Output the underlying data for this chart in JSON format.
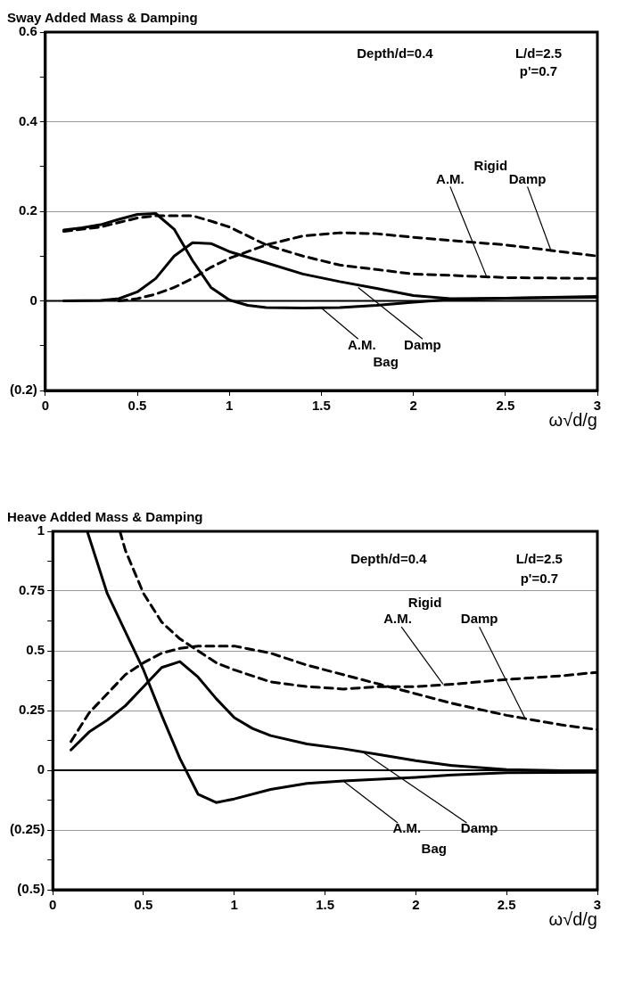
{
  "chart_data": [
    {
      "type": "line",
      "title": "Sway Added Mass & Damping",
      "xlabel": "ω√d/g",
      "xlim": [
        0,
        3
      ],
      "xticks": [
        0,
        0.5,
        1,
        1.5,
        2,
        2.5,
        3
      ],
      "ylim": [
        -0.2,
        0.6
      ],
      "yticks": [
        {
          "value": -0.2,
          "label": "(0.2)"
        },
        {
          "value": -0.1,
          "label": null
        },
        0,
        {
          "value": 0.1,
          "label": null
        },
        0.2,
        {
          "value": 0.3,
          "label": null
        },
        0.4,
        {
          "value": 0.5,
          "label": null
        },
        0.6
      ],
      "grid": "y",
      "legend": false,
      "marker": "none",
      "tick_labels": "xy",
      "ref_lines": [
        {
          "axis": "y",
          "value": 0,
          "color": "#000000"
        }
      ],
      "series": [
        {
          "color": "#000000",
          "line_style": "solid",
          "x": [
            0.1,
            0.2,
            0.3,
            0.4,
            0.5,
            0.6,
            0.7,
            0.8,
            0.9,
            1.0,
            1.1,
            1.2,
            1.4,
            1.6,
            1.8,
            2.0,
            2.2,
            2.5,
            3.0
          ],
          "values": [
            0.158,
            0.163,
            0.17,
            0.182,
            0.193,
            0.195,
            0.16,
            0.09,
            0.03,
            0.002,
            -0.01,
            -0.015,
            -0.016,
            -0.015,
            -0.01,
            -0.003,
            0.003,
            0.006,
            0.008
          ]
        },
        {
          "color": "#000000",
          "line_style": "solid",
          "x": [
            0.1,
            0.3,
            0.4,
            0.5,
            0.6,
            0.7,
            0.8,
            0.9,
            1.0,
            1.2,
            1.4,
            1.6,
            1.8,
            2.0,
            2.2,
            2.5,
            3.0
          ],
          "values": [
            0,
            0.001,
            0.005,
            0.02,
            0.05,
            0.1,
            0.13,
            0.128,
            0.11,
            0.085,
            0.06,
            0.043,
            0.028,
            0.012,
            0.005,
            0.006,
            0.01
          ]
        },
        {
          "color": "#000000",
          "line_style": "dashed",
          "x": [
            0.1,
            0.2,
            0.3,
            0.4,
            0.5,
            0.6,
            0.7,
            0.8,
            0.9,
            1.0,
            1.1,
            1.2,
            1.4,
            1.6,
            1.8,
            2.0,
            2.2,
            2.5,
            3.0
          ],
          "values": [
            0.155,
            0.16,
            0.165,
            0.175,
            0.185,
            0.19,
            0.19,
            0.19,
            0.178,
            0.165,
            0.145,
            0.125,
            0.1,
            0.08,
            0.07,
            0.06,
            0.057,
            0.052,
            0.05
          ]
        },
        {
          "color": "#000000",
          "line_style": "dashed",
          "x": [
            0.4,
            0.5,
            0.6,
            0.7,
            0.8,
            0.9,
            1.0,
            1.2,
            1.4,
            1.6,
            1.8,
            2.0,
            2.2,
            2.5,
            2.8,
            3.0
          ],
          "values": [
            0,
            0.005,
            0.015,
            0.03,
            0.05,
            0.075,
            0.095,
            0.125,
            0.145,
            0.152,
            0.15,
            0.142,
            0.135,
            0.125,
            0.11,
            0.1
          ]
        }
      ],
      "annotations": [
        "Depth/d=0.4",
        "L/d=2.5",
        "p'=0.7",
        "Rigid",
        {
          "text": "A.M.",
          "x": 2.4,
          "y": 0.052
        },
        {
          "text": "Damp",
          "x": 2.75,
          "y": 0.11
        },
        {
          "text": "A.M.",
          "x": 1.5,
          "y": -0.016
        },
        {
          "text": "Damp",
          "x": 1.7,
          "y": 0.03
        },
        "Bag"
      ]
    },
    {
      "type": "line",
      "title": "Heave Added Mass & Damping",
      "xlabel": "ω√d/g",
      "xlim": [
        0,
        3
      ],
      "xticks": [
        0,
        0.5,
        1,
        1.5,
        2,
        2.5,
        3
      ],
      "ylim": [
        -0.5,
        1
      ],
      "yticks": [
        {
          "value": -0.5,
          "label": "(0.5)"
        },
        {
          "value": -0.375,
          "label": null
        },
        {
          "value": -0.25,
          "label": "(0.25)"
        },
        {
          "value": -0.125,
          "label": null
        },
        0,
        {
          "value": 0.125,
          "label": null
        },
        0.25,
        {
          "value": 0.375,
          "label": null
        },
        0.5,
        {
          "value": 0.625,
          "label": null
        },
        0.75,
        {
          "value": 0.875,
          "label": null
        },
        1
      ],
      "grid": "y",
      "legend": false,
      "marker": "none",
      "tick_labels": "xy",
      "ref_lines": [
        {
          "axis": "y",
          "value": 0,
          "color": "#000000"
        }
      ],
      "series": [
        {
          "color": "#000000",
          "line_style": "solid",
          "x": [
            0.19,
            0.3,
            0.4,
            0.5,
            0.6,
            0.7,
            0.8,
            0.9,
            1.0,
            1.2,
            1.4,
            1.6,
            1.8,
            2.0,
            2.2,
            2.5,
            3.0
          ],
          "values": [
            1,
            0.74,
            0.58,
            0.42,
            0.23,
            0.05,
            -0.1,
            -0.135,
            -0.12,
            -0.08,
            -0.055,
            -0.045,
            -0.037,
            -0.03,
            -0.02,
            -0.01,
            -0.008
          ]
        },
        {
          "color": "#000000",
          "line_style": "solid",
          "x": [
            0.1,
            0.2,
            0.3,
            0.4,
            0.5,
            0.6,
            0.7,
            0.8,
            0.9,
            1.0,
            1.1,
            1.2,
            1.4,
            1.6,
            1.8,
            2.0,
            2.2,
            2.5,
            3.0
          ],
          "values": [
            0.085,
            0.16,
            0.21,
            0.27,
            0.35,
            0.43,
            0.455,
            0.39,
            0.3,
            0.22,
            0.175,
            0.145,
            0.11,
            0.09,
            0.065,
            0.04,
            0.02,
            0.003,
            -0.005
          ]
        },
        {
          "color": "#000000",
          "line_style": "dashed",
          "x": [
            0.37,
            0.4,
            0.5,
            0.6,
            0.7,
            0.8,
            0.9,
            1.0,
            1.2,
            1.4,
            1.6,
            1.8,
            2.0,
            2.2,
            2.5,
            2.8,
            3.0
          ],
          "values": [
            1,
            0.92,
            0.74,
            0.62,
            0.55,
            0.5,
            0.45,
            0.42,
            0.37,
            0.35,
            0.34,
            0.35,
            0.35,
            0.36,
            0.38,
            0.395,
            0.41
          ]
        },
        {
          "color": "#000000",
          "line_style": "dashed",
          "x": [
            0.1,
            0.2,
            0.3,
            0.4,
            0.5,
            0.6,
            0.7,
            0.8,
            1.0,
            1.2,
            1.4,
            1.6,
            1.8,
            2.0,
            2.2,
            2.5,
            2.8,
            3.0
          ],
          "values": [
            0.12,
            0.24,
            0.32,
            0.4,
            0.45,
            0.49,
            0.51,
            0.52,
            0.52,
            0.49,
            0.44,
            0.4,
            0.36,
            0.32,
            0.28,
            0.23,
            0.19,
            0.17
          ]
        }
      ],
      "annotations": [
        "Depth/d=0.4",
        "L/d=2.5",
        "p'=0.7",
        "Rigid",
        {
          "text": "A.M.",
          "x": 2.15,
          "y": 0.36
        },
        {
          "text": "Damp",
          "x": 2.6,
          "y": 0.22
        },
        {
          "text": "A.M.",
          "x": 1.6,
          "y": -0.045
        },
        {
          "text": "Damp",
          "x": 1.7,
          "y": 0.08
        },
        "Bag"
      ]
    }
  ]
}
